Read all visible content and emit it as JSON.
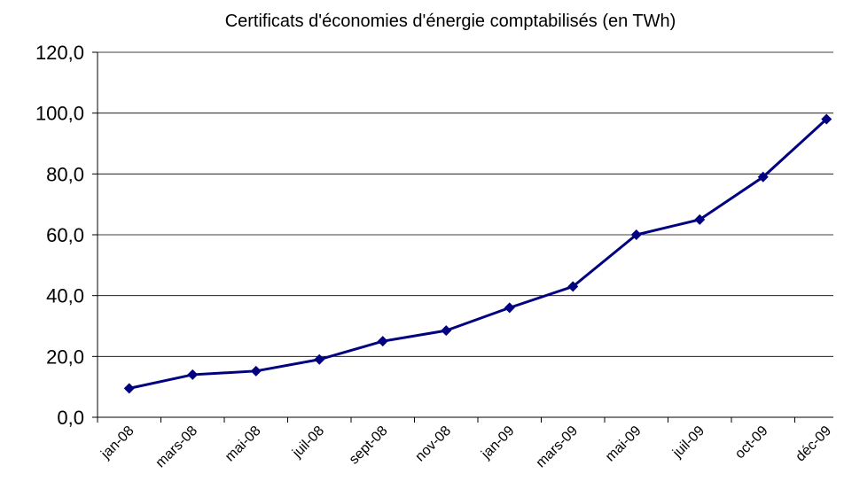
{
  "chart_data": {
    "type": "line",
    "title": "Certificats d'économies d'énergie comptabilisés (en TWh)",
    "categories": [
      "jan-08",
      "mars-08",
      "mai-08",
      "juil-08",
      "sept-08",
      "nov-08",
      "jan-09",
      "mars-09",
      "mai-09",
      "juil-09",
      "oct-09",
      "déc-09"
    ],
    "values": [
      9.5,
      14,
      15.2,
      19,
      25,
      28.5,
      36,
      43,
      60,
      65,
      79,
      98
    ],
    "color": "#000080",
    "ylim": [
      0,
      120
    ],
    "yticks": [
      {
        "value": 0,
        "label": "0,0"
      },
      {
        "value": 20,
        "label": "20,0"
      },
      {
        "value": 40,
        "label": "40,0"
      },
      {
        "value": 60,
        "label": "60,0"
      },
      {
        "value": 80,
        "label": "80,0"
      },
      {
        "value": 100,
        "label": "100,0"
      },
      {
        "value": 120,
        "label": "120,0"
      }
    ],
    "grid": true
  }
}
